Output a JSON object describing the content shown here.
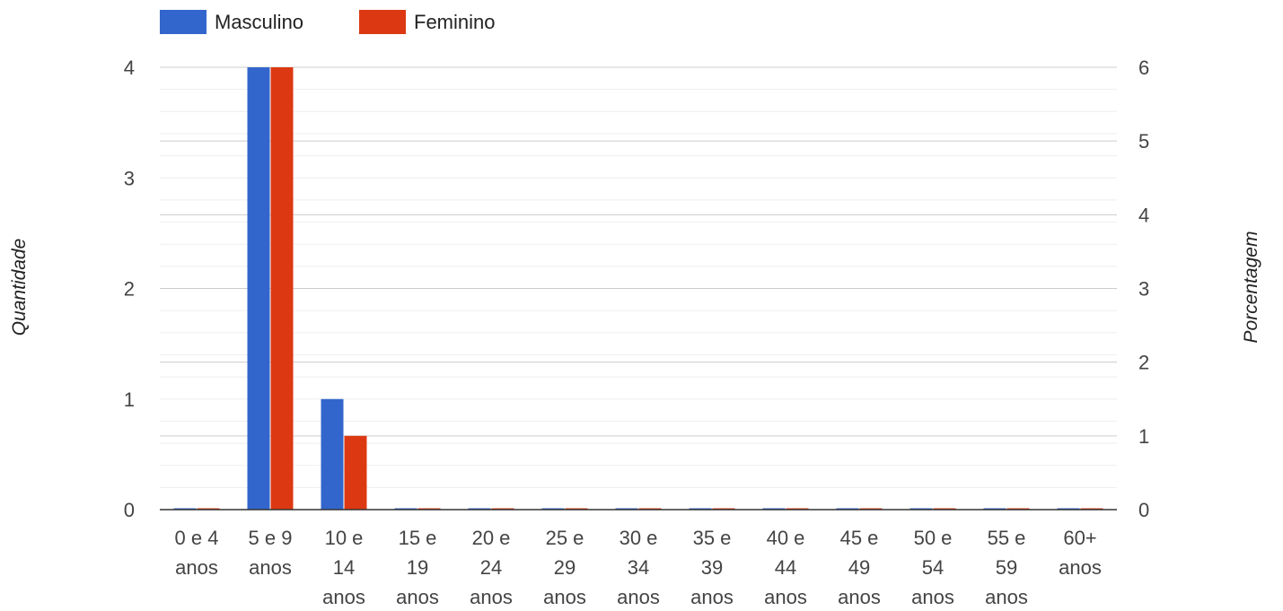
{
  "chart_data": {
    "type": "bar",
    "categories": [
      [
        "0 e 4",
        "anos"
      ],
      [
        "5 e 9",
        "anos"
      ],
      [
        "10 e",
        "14",
        "anos"
      ],
      [
        "15 e",
        "19",
        "anos"
      ],
      [
        "20 e",
        "24",
        "anos"
      ],
      [
        "25 e",
        "29",
        "anos"
      ],
      [
        "30 e",
        "34",
        "anos"
      ],
      [
        "35 e",
        "39",
        "anos"
      ],
      [
        "40 e",
        "44",
        "anos"
      ],
      [
        "45 e",
        "49",
        "anos"
      ],
      [
        "50 e",
        "54",
        "anos"
      ],
      [
        "55 e",
        "59",
        "anos"
      ],
      [
        "60+",
        "anos"
      ]
    ],
    "series": [
      {
        "name": "Masculino",
        "color": "#3366cc",
        "axis": "left",
        "values": [
          0,
          4,
          1,
          0,
          0,
          0,
          0,
          0,
          0,
          0,
          0,
          0,
          0
        ]
      },
      {
        "name": "Feminino",
        "color": "#dc3912",
        "axis": "right",
        "values": [
          0,
          6,
          1,
          0,
          0,
          0,
          0,
          0,
          0,
          0,
          0,
          0,
          0
        ]
      }
    ],
    "ylabel": "Quantidade",
    "ylabel_right": "Porcentagem",
    "ylim": [
      0,
      4
    ],
    "ylim_right": [
      0,
      6
    ],
    "yticks": [
      0,
      1,
      2,
      3,
      4
    ],
    "yticks_right": [
      0,
      1,
      2,
      3,
      4,
      5,
      6
    ],
    "grid": true,
    "legend_position": "top-left"
  }
}
